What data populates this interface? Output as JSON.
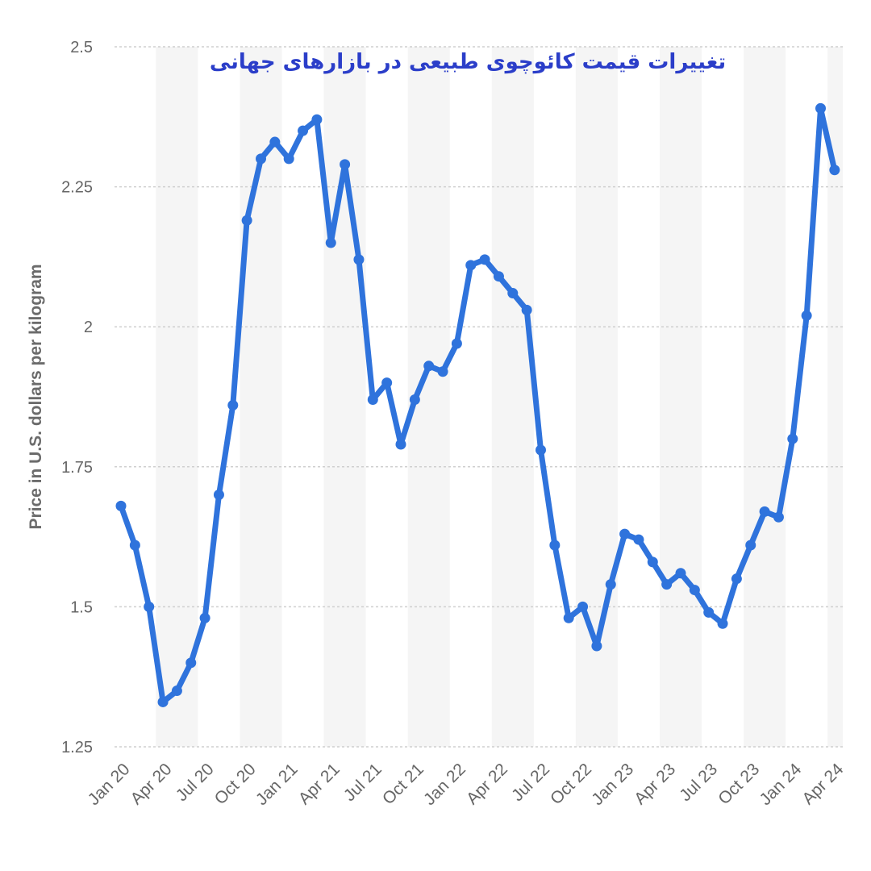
{
  "chart_data": {
    "type": "line",
    "title": "تغییرات قیمت کائوچوی طبیعی در بازارهای جهانی",
    "xlabel": "",
    "ylabel": "Price in U.S. dollars per kilogram",
    "ylim": [
      1.25,
      2.5
    ],
    "yticks": [
      "1.25",
      "1.5",
      "1.75",
      "2",
      "2.25",
      "2.5"
    ],
    "grid": true,
    "xtick_labels": [
      "Jan 20",
      "Apr 20",
      "Jul 20",
      "Oct 20",
      "Jan 21",
      "Apr 21",
      "Jul 21",
      "Oct 21",
      "Jan 22",
      "Apr 22",
      "Jul 22",
      "Oct 22",
      "Jan 23",
      "Apr 23",
      "Jul 23",
      "Oct 23",
      "Jan 24",
      "Apr 24"
    ],
    "x": [
      "Jan 20",
      "Feb 20",
      "Mar 20",
      "Apr 20",
      "May 20",
      "Jun 20",
      "Jul 20",
      "Aug 20",
      "Sep 20",
      "Oct 20",
      "Nov 20",
      "Dec 20",
      "Jan 21",
      "Feb 21",
      "Mar 21",
      "Apr 21",
      "May 21",
      "Jun 21",
      "Jul 21",
      "Aug 21",
      "Sep 21",
      "Oct 21",
      "Nov 21",
      "Dec 21",
      "Jan 22",
      "Feb 22",
      "Mar 22",
      "Apr 22",
      "May 22",
      "Jun 22",
      "Jul 22",
      "Aug 22",
      "Sep 22",
      "Oct 22",
      "Nov 22",
      "Dec 22",
      "Jan 23",
      "Feb 23",
      "Mar 23",
      "Apr 23",
      "May 23",
      "Jun 23",
      "Jul 23",
      "Aug 23",
      "Sep 23",
      "Oct 23",
      "Nov 23",
      "Dec 23",
      "Jan 24",
      "Feb 24",
      "Mar 24",
      "Apr 24"
    ],
    "series": [
      {
        "values": [
          1.68,
          1.61,
          1.5,
          1.33,
          1.35,
          1.4,
          1.48,
          1.7,
          1.86,
          2.19,
          2.3,
          2.33,
          2.3,
          2.35,
          2.37,
          2.15,
          2.29,
          2.12,
          1.87,
          1.9,
          1.79,
          1.87,
          1.93,
          1.92,
          1.97,
          2.11,
          2.12,
          2.09,
          2.06,
          2.03,
          1.78,
          1.61,
          1.48,
          1.5,
          1.43,
          1.54,
          1.63,
          1.62,
          1.58,
          1.54,
          1.56,
          1.53,
          1.49,
          1.47,
          1.55,
          1.61,
          1.67,
          1.66,
          1.8,
          2.02,
          2.39,
          2.28
        ]
      }
    ],
    "colors": {
      "line": "#2f73dc",
      "title": "#2b3ec9",
      "band": "#f5f5f5",
      "grid": "#cfcfcf",
      "tick": "#666666",
      "ylabel": "#6b6b6b"
    }
  }
}
